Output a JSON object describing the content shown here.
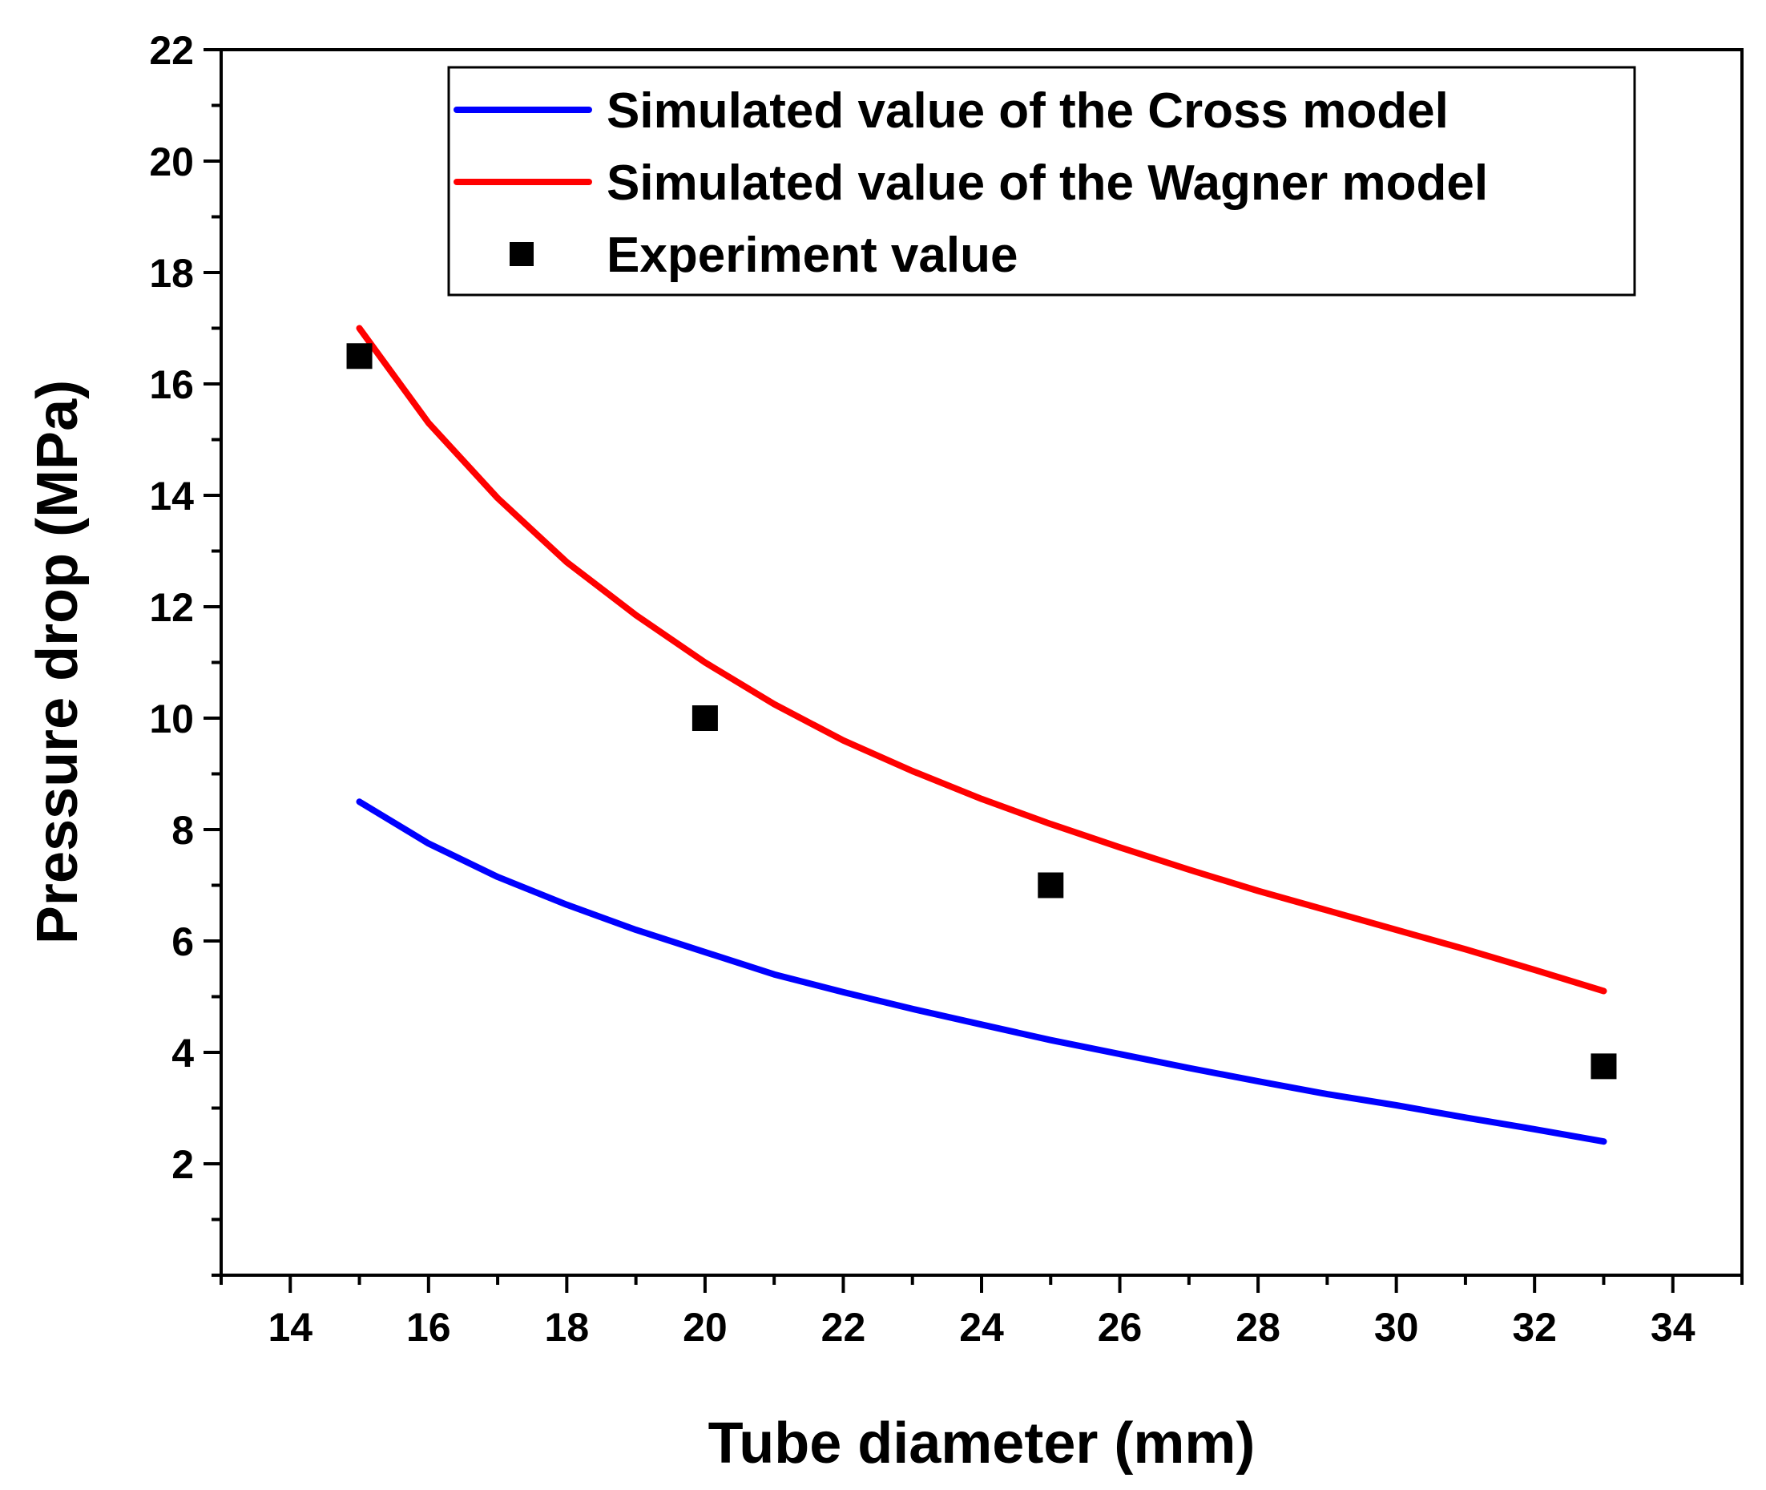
{
  "chart_data": {
    "type": "line",
    "title": "",
    "xlabel": "Tube diameter (mm)",
    "ylabel": "Pressure drop (MPa)",
    "xlim": [
      13,
      35
    ],
    "ylim": [
      0,
      22
    ],
    "x_ticks": [
      14,
      16,
      18,
      20,
      22,
      24,
      26,
      28,
      30,
      32,
      34
    ],
    "y_ticks": [
      2,
      4,
      6,
      8,
      10,
      12,
      14,
      16,
      18,
      20,
      22
    ],
    "grid": false,
    "legend_position": "top-right",
    "series": [
      {
        "name": "Simulated value of the Cross model",
        "kind": "line",
        "color": "#0000ff",
        "x": [
          15,
          16,
          17,
          18,
          19,
          20,
          21,
          22,
          23,
          24,
          25,
          26,
          27,
          28,
          29,
          30,
          31,
          32,
          33
        ],
        "y": [
          8.5,
          7.75,
          7.15,
          6.65,
          6.2,
          5.8,
          5.4,
          5.08,
          4.78,
          4.5,
          4.22,
          3.97,
          3.72,
          3.48,
          3.25,
          3.05,
          2.83,
          2.62,
          2.4
        ]
      },
      {
        "name": "Simulated value of the Wagner model",
        "kind": "line",
        "color": "#ff0000",
        "x": [
          15,
          16,
          17,
          18,
          19,
          20,
          21,
          22,
          23,
          24,
          25,
          26,
          27,
          28,
          29,
          30,
          31,
          32,
          33
        ],
        "y": [
          17.0,
          15.3,
          13.95,
          12.8,
          11.85,
          11.0,
          10.25,
          9.6,
          9.05,
          8.55,
          8.1,
          7.68,
          7.28,
          6.9,
          6.55,
          6.2,
          5.85,
          5.48,
          5.1
        ]
      },
      {
        "name": "Experiment value",
        "kind": "scatter",
        "color": "#000000",
        "x": [
          15,
          20,
          25,
          33
        ],
        "y": [
          16.5,
          10.0,
          7.0,
          3.75
        ]
      }
    ]
  }
}
